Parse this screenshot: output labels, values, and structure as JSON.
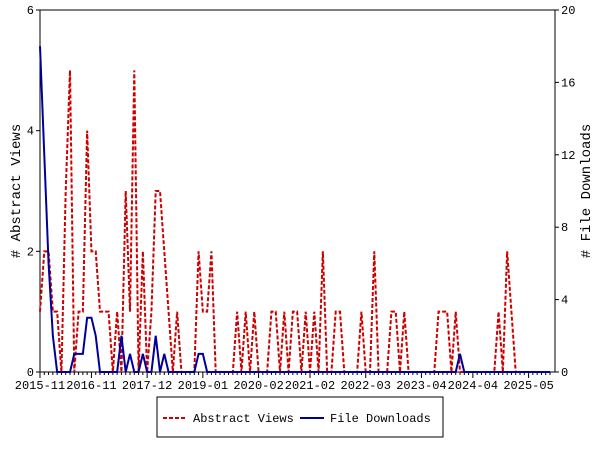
{
  "chart_data": {
    "type": "line",
    "y_label": "# Abstract Views",
    "y2_label": "# File Downloads",
    "categories": [
      "2015-11",
      null,
      null,
      null,
      null,
      null,
      null,
      null,
      null,
      null,
      null,
      null,
      "2016-11",
      null,
      null,
      null,
      null,
      null,
      null,
      null,
      null,
      null,
      null,
      null,
      null,
      "2017-12",
      null,
      null,
      null,
      null,
      null,
      null,
      null,
      null,
      null,
      null,
      null,
      null,
      "2019-01",
      null,
      null,
      null,
      null,
      null,
      null,
      null,
      null,
      null,
      null,
      null,
      null,
      "2020-02",
      null,
      null,
      null,
      null,
      null,
      null,
      null,
      null,
      null,
      null,
      null,
      "2021-02",
      null,
      null,
      null,
      null,
      null,
      null,
      null,
      null,
      null,
      null,
      null,
      null,
      "2022-03",
      null,
      null,
      null,
      null,
      null,
      null,
      null,
      null,
      null,
      null,
      null,
      null,
      "2023-04",
      null,
      null,
      null,
      null,
      null,
      null,
      null,
      null,
      null,
      null,
      null,
      "2024-04",
      null,
      null,
      null,
      null,
      null,
      null,
      null,
      null,
      null,
      null,
      null,
      null,
      "2025-05",
      null,
      null,
      null,
      null,
      null
    ],
    "series": [
      {
        "name": "Abstract Views",
        "color": "#cc0000",
        "dash": true,
        "values": [
          1,
          2,
          2,
          1,
          1,
          0,
          3,
          5,
          0,
          1,
          1,
          4,
          2,
          2,
          1,
          1,
          1,
          0,
          1,
          0,
          3,
          1,
          5,
          0,
          2,
          0,
          1,
          3,
          3,
          2,
          1,
          0,
          1,
          0,
          0,
          0,
          0,
          2,
          1,
          1,
          2,
          0,
          0,
          0,
          0,
          0,
          1,
          0,
          1,
          0,
          1,
          0,
          0,
          0,
          1,
          1,
          0,
          1,
          0,
          1,
          1,
          0,
          1,
          0,
          1,
          0,
          2,
          0,
          0,
          1,
          1,
          0,
          0,
          0,
          0,
          1,
          0,
          0,
          2,
          0,
          0,
          0,
          1,
          1,
          0,
          1,
          0,
          0,
          0,
          0,
          0,
          0,
          0,
          1,
          1,
          1,
          0,
          1,
          0,
          0,
          0,
          0,
          0,
          0,
          0,
          0,
          0,
          1,
          0,
          2,
          1,
          0,
          0,
          0,
          0,
          0,
          0,
          0,
          0,
          0
        ]
      },
      {
        "name": "File Downloads",
        "color": "#000099",
        "axis": "y2",
        "values": [
          18,
          12,
          6,
          2,
          0,
          0,
          0,
          0,
          1,
          1,
          1,
          3,
          3,
          2,
          0,
          0,
          0,
          0,
          0,
          2,
          0,
          1,
          0,
          0,
          1,
          0,
          0,
          2,
          0,
          1,
          0,
          0,
          0,
          0,
          0,
          0,
          0,
          1,
          1,
          0,
          0,
          0,
          0,
          0,
          0,
          0,
          0,
          0,
          0,
          0,
          0,
          0,
          0,
          0,
          0,
          0,
          0,
          0,
          0,
          0,
          0,
          0,
          0,
          0,
          0,
          0,
          0,
          0,
          0,
          0,
          0,
          0,
          0,
          0,
          0,
          0,
          0,
          0,
          0,
          0,
          0,
          0,
          0,
          0,
          0,
          0,
          0,
          0,
          0,
          0,
          0,
          0,
          0,
          0,
          0,
          0,
          0,
          0,
          1,
          0,
          0,
          0,
          0,
          0,
          0,
          0,
          0,
          0,
          0,
          0,
          0,
          0,
          0,
          0,
          0,
          0,
          0,
          0,
          0,
          0
        ]
      }
    ],
    "ylim": [
      0,
      6
    ],
    "yticks": [
      0,
      2,
      4,
      6
    ],
    "y2lim": [
      0,
      20
    ],
    "y2ticks": [
      0,
      4,
      8,
      12,
      16,
      20
    ]
  }
}
